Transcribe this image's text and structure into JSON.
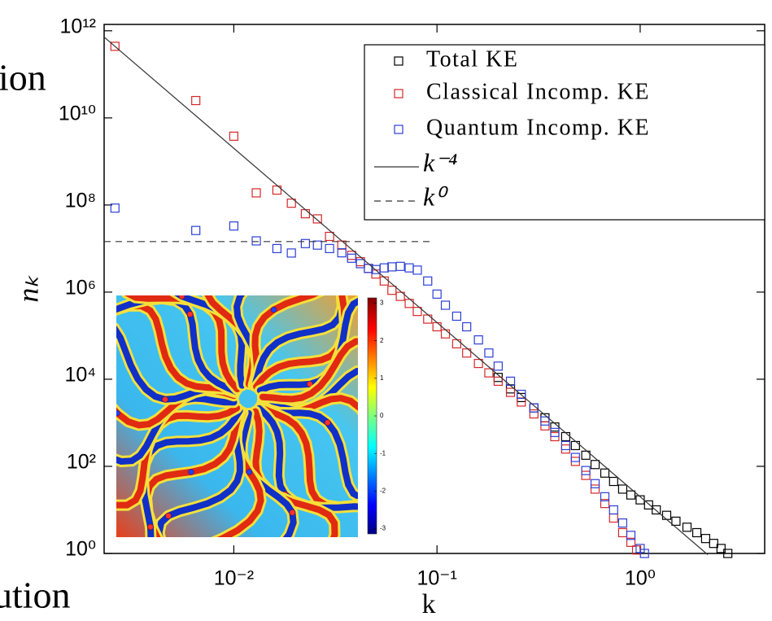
{
  "background_text": [
    "ion",
    "ution"
  ],
  "chart_data": {
    "type": "scatter",
    "xlabel": "k",
    "ylabel": "nₖ",
    "log_x": true,
    "log_y": true,
    "xlim": [
      0.0023,
      4.1
    ],
    "ylim": [
      1,
      1400000000000.0
    ],
    "xticks": [
      {
        "value": 0.01,
        "label": "10⁻²"
      },
      {
        "value": 0.1,
        "label": "10⁻¹"
      },
      {
        "value": 1,
        "label": "10⁰"
      }
    ],
    "yticks": [
      {
        "value": 1,
        "label": "10⁰"
      },
      {
        "value": 100,
        "label": "10²"
      },
      {
        "value": 10000,
        "label": "10⁴"
      },
      {
        "value": 1000000,
        "label": "10⁶"
      },
      {
        "value": 100000000,
        "label": "10⁸"
      },
      {
        "value": 10000000000,
        "label": "10¹⁰"
      },
      {
        "value": 1000000000000,
        "label": "10¹²"
      }
    ],
    "legend": "upper right",
    "series": [
      {
        "name": "Total KE",
        "color": "#000000",
        "marker": "square",
        "x": [
          0.2,
          0.23,
          0.26,
          0.3,
          0.34,
          0.38,
          0.43,
          0.48,
          0.54,
          0.6,
          0.67,
          0.74,
          0.82,
          0.9,
          1.0,
          1.1,
          1.2,
          1.35,
          1.5,
          1.7,
          1.9,
          2.1,
          2.3,
          2.5,
          2.7
        ],
        "values": [
          11000,
          6000,
          3800,
          2200,
          1300,
          800,
          480,
          300,
          180,
          110,
          70,
          45,
          30,
          22,
          17,
          13,
          10,
          7.5,
          5.5,
          4,
          3,
          2.2,
          1.7,
          1.3,
          1.0
        ]
      },
      {
        "name": "Classical Incomp. KE",
        "color": "#d62728",
        "marker": "square",
        "x": [
          0.0026,
          0.0065,
          0.01,
          0.0129,
          0.0163,
          0.0192,
          0.0225,
          0.0258,
          0.0296,
          0.034,
          0.038,
          0.042,
          0.046,
          0.05,
          0.055,
          0.06,
          0.066,
          0.073,
          0.08,
          0.09,
          0.1,
          0.11,
          0.125,
          0.14,
          0.16,
          0.18,
          0.2,
          0.23,
          0.26,
          0.3,
          0.34,
          0.38,
          0.43,
          0.48,
          0.54,
          0.6,
          0.67,
          0.74,
          0.82,
          0.9,
          0.96
        ],
        "values": [
          440000000000,
          25000000000,
          3800000000,
          190000000,
          220000000,
          110000000,
          63000000,
          48000000,
          19000000,
          12000000,
          7000000,
          5000000,
          3500000,
          2600000,
          1800000,
          1100000,
          800000,
          550000,
          360000,
          240000,
          160000,
          110000,
          65000,
          40000,
          23000,
          14000,
          9000,
          5000,
          3000,
          1600,
          850,
          480,
          250,
          130,
          62,
          30,
          14,
          6.5,
          3,
          1.8,
          1.2
        ]
      },
      {
        "name": "Quantum Incomp. KE",
        "color": "#2b3fd6",
        "marker": "square",
        "x": [
          0.0026,
          0.0065,
          0.01,
          0.0129,
          0.0163,
          0.0192,
          0.0225,
          0.0258,
          0.0296,
          0.034,
          0.038,
          0.042,
          0.046,
          0.05,
          0.055,
          0.06,
          0.066,
          0.073,
          0.08,
          0.09,
          0.1,
          0.11,
          0.125,
          0.14,
          0.16,
          0.18,
          0.2,
          0.23,
          0.26,
          0.3,
          0.34,
          0.38,
          0.43,
          0.48,
          0.54,
          0.6,
          0.67,
          0.74,
          0.82,
          0.9,
          1.0,
          1.05
        ],
        "values": [
          85000000,
          26000000,
          33000000,
          15000000,
          10000000,
          7900000,
          13000000,
          12000000,
          10000000,
          8000000,
          6000000,
          4500000,
          3500000,
          3300000,
          3600000,
          3800000,
          3900000,
          3600000,
          3200000,
          1800000,
          900000,
          500000,
          280000,
          160000,
          80000,
          40000,
          20000,
          9000,
          4500,
          2200,
          1100,
          600,
          300,
          160,
          80,
          40,
          20,
          10,
          5,
          2.6,
          1.3,
          1.0
        ]
      },
      {
        "name": "k⁻⁴",
        "color": "#333333",
        "line_style": "solid",
        "x": [
          0.0023,
          2.15
        ],
        "values": [
          715000000000,
          0.936
        ]
      },
      {
        "name": "k⁰",
        "color": "#333333",
        "line_style": "dashed",
        "x": [
          0.0023,
          0.094
        ],
        "values": [
          14500000,
          14500000
        ]
      }
    ],
    "inset": {
      "colorbar_ticks": [
        3,
        2,
        1,
        0,
        -1,
        -2,
        -3
      ],
      "clim": [
        -3.14,
        3.14
      ]
    }
  }
}
